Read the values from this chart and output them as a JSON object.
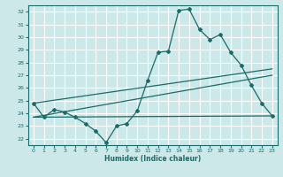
{
  "xlabel": "Humidex (Indice chaleur)",
  "bg_color": "#cce8e8",
  "grid_color": "#ffffff",
  "line_color": "#1a6b6b",
  "xlim": [
    -0.5,
    23.5
  ],
  "ylim": [
    21.5,
    32.5
  ],
  "yticks": [
    22,
    23,
    24,
    25,
    26,
    27,
    28,
    29,
    30,
    31,
    32
  ],
  "xticks": [
    0,
    1,
    2,
    3,
    4,
    5,
    6,
    7,
    8,
    9,
    10,
    11,
    12,
    13,
    14,
    15,
    16,
    17,
    18,
    19,
    20,
    21,
    22,
    23
  ],
  "line1_x": [
    0,
    1,
    2,
    3,
    4,
    5,
    6,
    7,
    8,
    9,
    10,
    11,
    12,
    13,
    14,
    15,
    16,
    17,
    18,
    19,
    20,
    21,
    22,
    23
  ],
  "line1_y": [
    24.8,
    23.7,
    24.3,
    24.1,
    23.7,
    23.2,
    22.6,
    21.7,
    23.0,
    23.2,
    24.2,
    26.6,
    28.8,
    28.9,
    32.1,
    32.2,
    30.6,
    29.8,
    30.2,
    28.8,
    27.8,
    26.2,
    24.8,
    23.8
  ],
  "line2_x": [
    0,
    23
  ],
  "line2_y": [
    24.8,
    27.5
  ],
  "line3_x": [
    0,
    23
  ],
  "line3_y": [
    23.7,
    27.0
  ],
  "line4_x": [
    0,
    23
  ],
  "line4_y": [
    23.7,
    23.8
  ]
}
